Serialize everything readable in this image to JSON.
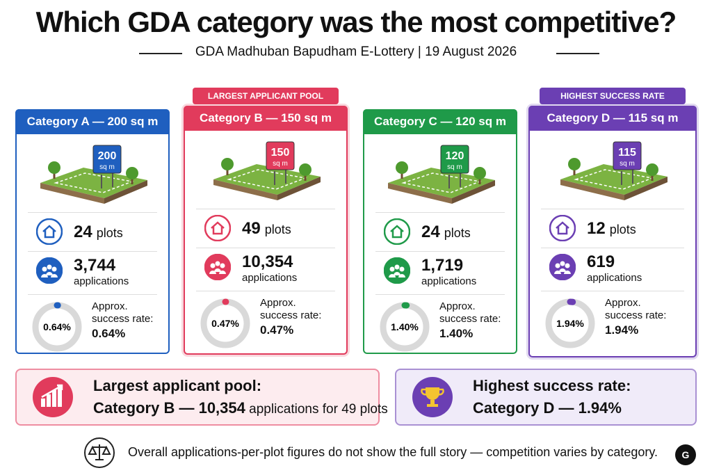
{
  "title": "Which GDA category was the most competitive?",
  "subtitle": "GDA Madhuban Bapudham E-Lottery | 19 August 2026",
  "cards": [
    {
      "name": "Category A — 200 sq m",
      "color": "#1f5fbf",
      "sign_size": "200",
      "sign_unit": "sq m",
      "plots": 24,
      "plots_unit": "plots",
      "applications": "3,744",
      "applications_unit": "applications",
      "rate": 0.64,
      "rate_label": "0.64%",
      "rate_caption": "Approx. success rate:"
    },
    {
      "name": "Category B — 150 sq m",
      "color": "#e13b5c",
      "badge": "LARGEST APPLICANT POOL",
      "sign_size": "150",
      "sign_unit": "sq m",
      "plots": 49,
      "plots_unit": "plots",
      "applications": "10,354",
      "applications_unit": "applications",
      "rate": 0.47,
      "rate_label": "0.47%",
      "rate_caption": "Approx. success rate:"
    },
    {
      "name": "Category C — 120 sq m",
      "color": "#1f9a49",
      "sign_size": "120",
      "sign_unit": "sq m",
      "plots": 24,
      "plots_unit": "plots",
      "applications": "1,719",
      "applications_unit": "applications",
      "rate": 1.4,
      "rate_label": "1.40%",
      "rate_caption": "Approx. success rate:"
    },
    {
      "name": "Category D — 115 sq m",
      "color": "#6b3fb3",
      "badge": "HIGHEST SUCCESS RATE",
      "sign_size": "115",
      "sign_unit": "sq m",
      "plots": 12,
      "plots_unit": "plots",
      "applications": "619",
      "applications_unit": "applications",
      "rate": 1.94,
      "rate_label": "1.94%",
      "rate_caption": "Approx. success rate:"
    }
  ],
  "callouts": [
    {
      "heading": "Largest applicant pool:",
      "highlight": "Category B — 10,354",
      "detail": " applications for 49 plots"
    },
    {
      "heading": "Highest success rate:",
      "highlight": "Category D — 1.94%"
    }
  ],
  "footer": "Overall applications-per-plot figures do not show the full story — competition varies by category."
}
